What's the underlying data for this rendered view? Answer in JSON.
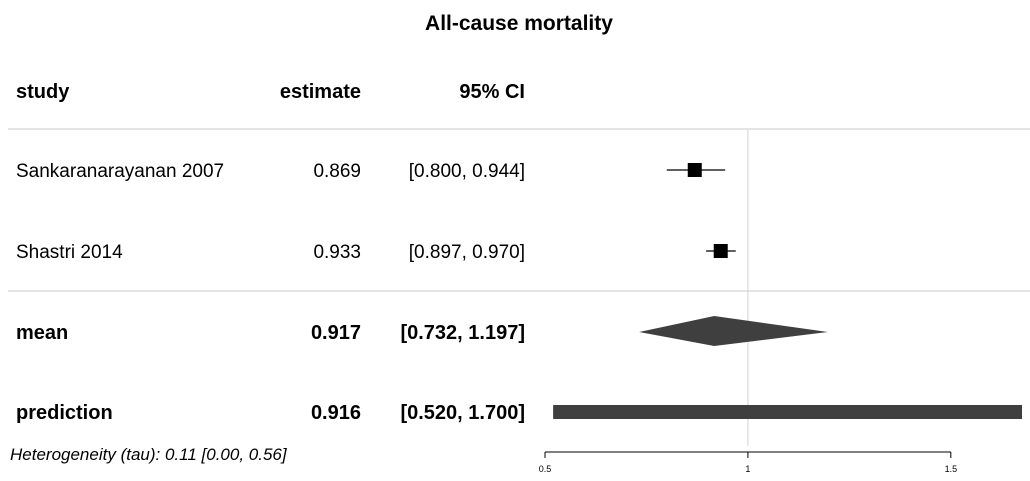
{
  "chart_data": {
    "type": "forest",
    "title": "All-cause mortality",
    "columns": {
      "study": "study",
      "estimate": "estimate",
      "ci": "95% CI"
    },
    "studies": [
      {
        "name": "Sankaranarayanan 2007",
        "estimate": 0.869,
        "lower": 0.8,
        "upper": 0.944,
        "estimate_label": "0.869",
        "ci_label": "[0.800, 0.944]"
      },
      {
        "name": "Shastri 2014",
        "estimate": 0.933,
        "lower": 0.897,
        "upper": 0.97,
        "estimate_label": "0.933",
        "ci_label": "[0.897, 0.970]"
      }
    ],
    "summary": [
      {
        "name": "mean",
        "estimate": 0.917,
        "lower": 0.732,
        "upper": 1.197,
        "estimate_label": "0.917",
        "ci_label": "[0.732, 1.197]",
        "shape": "diamond"
      },
      {
        "name": "prediction",
        "estimate": 0.916,
        "lower": 0.52,
        "upper": 1.7,
        "estimate_label": "0.916",
        "ci_label": "[0.520, 1.700]",
        "shape": "bar"
      }
    ],
    "heterogeneity": "Heterogeneity (tau): 0.11 [0.00, 0.56]",
    "xlim": [
      0.5,
      1.7
    ],
    "xticks": [
      0.5,
      1,
      1.5
    ],
    "xtick_labels": [
      "0.5",
      "1",
      "1.5"
    ],
    "reference_line": 1,
    "colors": {
      "marker": "#000000",
      "summary": "#3f3f3f",
      "separator": "#c8c8c8",
      "reference": "#d0d0d0"
    }
  }
}
